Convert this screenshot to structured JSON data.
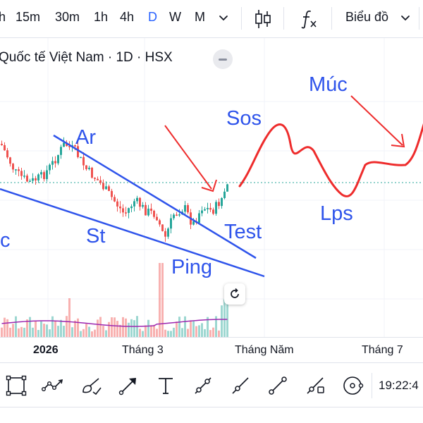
{
  "toolbar_top": {
    "timeframes": [
      "h",
      "15m",
      "30m",
      "1h",
      "4h",
      "D",
      "W",
      "M"
    ],
    "active_timeframe": "D",
    "chart_type_label": "Biểu đồ"
  },
  "chart": {
    "symbol_title": "Quốc tế Việt Nam · 1D · HSX",
    "x_axis_labels": [
      "2026",
      "Tháng 3",
      "Tháng Năm",
      "Tháng 7"
    ],
    "colors": {
      "up": "#26a69a",
      "down": "#ef5350",
      "annotation_line": "#2f54eb",
      "annotation_red": "#ee2c2c",
      "volume_ma": "#9c27b0"
    },
    "annotations": {
      "ar": "Ar",
      "sos": "Sos",
      "muc": "Múc",
      "lps": "Lps",
      "st": "St",
      "test": "Test",
      "ping": "Ping",
      "c": "c"
    }
  },
  "bottom_toolbar": {
    "tools": [
      "rectangle-tool",
      "path-tool",
      "brush-tool",
      "arrow-tool",
      "text-tool",
      "trend-angle-tool",
      "ray-tool",
      "line-tool",
      "extended-line-tool",
      "circle-tool"
    ],
    "time": "19:22:4"
  }
}
